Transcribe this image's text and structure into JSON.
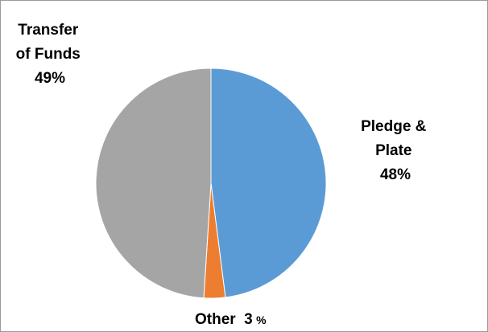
{
  "chart_data": {
    "type": "pie",
    "title": "",
    "slices": [
      {
        "name": "Pledge & Plate",
        "value": 48,
        "value_label": "48%",
        "label_lines": [
          "Pledge &",
          "Plate"
        ],
        "color": "#5b9bd5"
      },
      {
        "name": "Other",
        "value": 3,
        "value_label": "3%",
        "label_lines": [
          "Other"
        ],
        "color": "#ed7d31"
      },
      {
        "name": "Transfer of Funds",
        "value": 49,
        "value_label": "49%",
        "label_lines": [
          "Transfer",
          "of Funds"
        ],
        "color": "#a5a5a5"
      }
    ],
    "start": "12 o'clock",
    "direction": "clockwise",
    "legend": "none",
    "data_labels": "category name and percentage"
  }
}
